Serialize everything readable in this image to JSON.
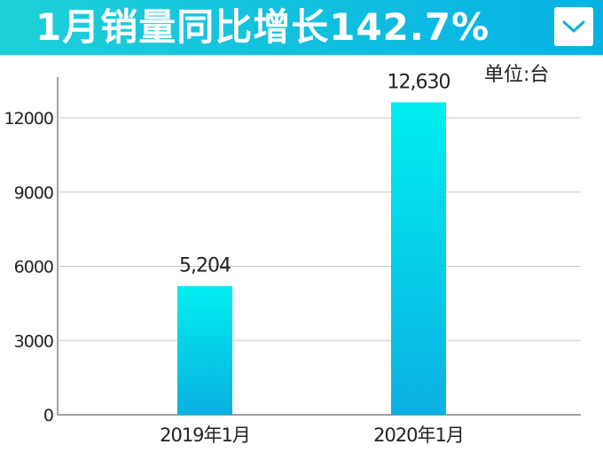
{
  "header": {
    "title": "1月销量同比增长142.7%",
    "menu_icon": "chevron-down-icon"
  },
  "colors": {
    "header_gradient_start": "#1fd0d8",
    "header_gradient_end": "#06b2e4",
    "bar_top": "#00eef0",
    "bar_bottom": "#0bb0e2",
    "grid": "#c8c8c8",
    "axis": "#666666"
  },
  "chart_data": {
    "type": "bar",
    "title": "",
    "unit_label": "单位:台",
    "categories": [
      "2019年1月",
      "2020年1月"
    ],
    "values": [
      5204,
      12630
    ],
    "data_labels": [
      "5,204",
      "12,630"
    ],
    "yticks": [
      0,
      3000,
      6000,
      9000,
      12000
    ],
    "ylim": [
      0,
      14000
    ],
    "grid": true,
    "legend": "none"
  }
}
